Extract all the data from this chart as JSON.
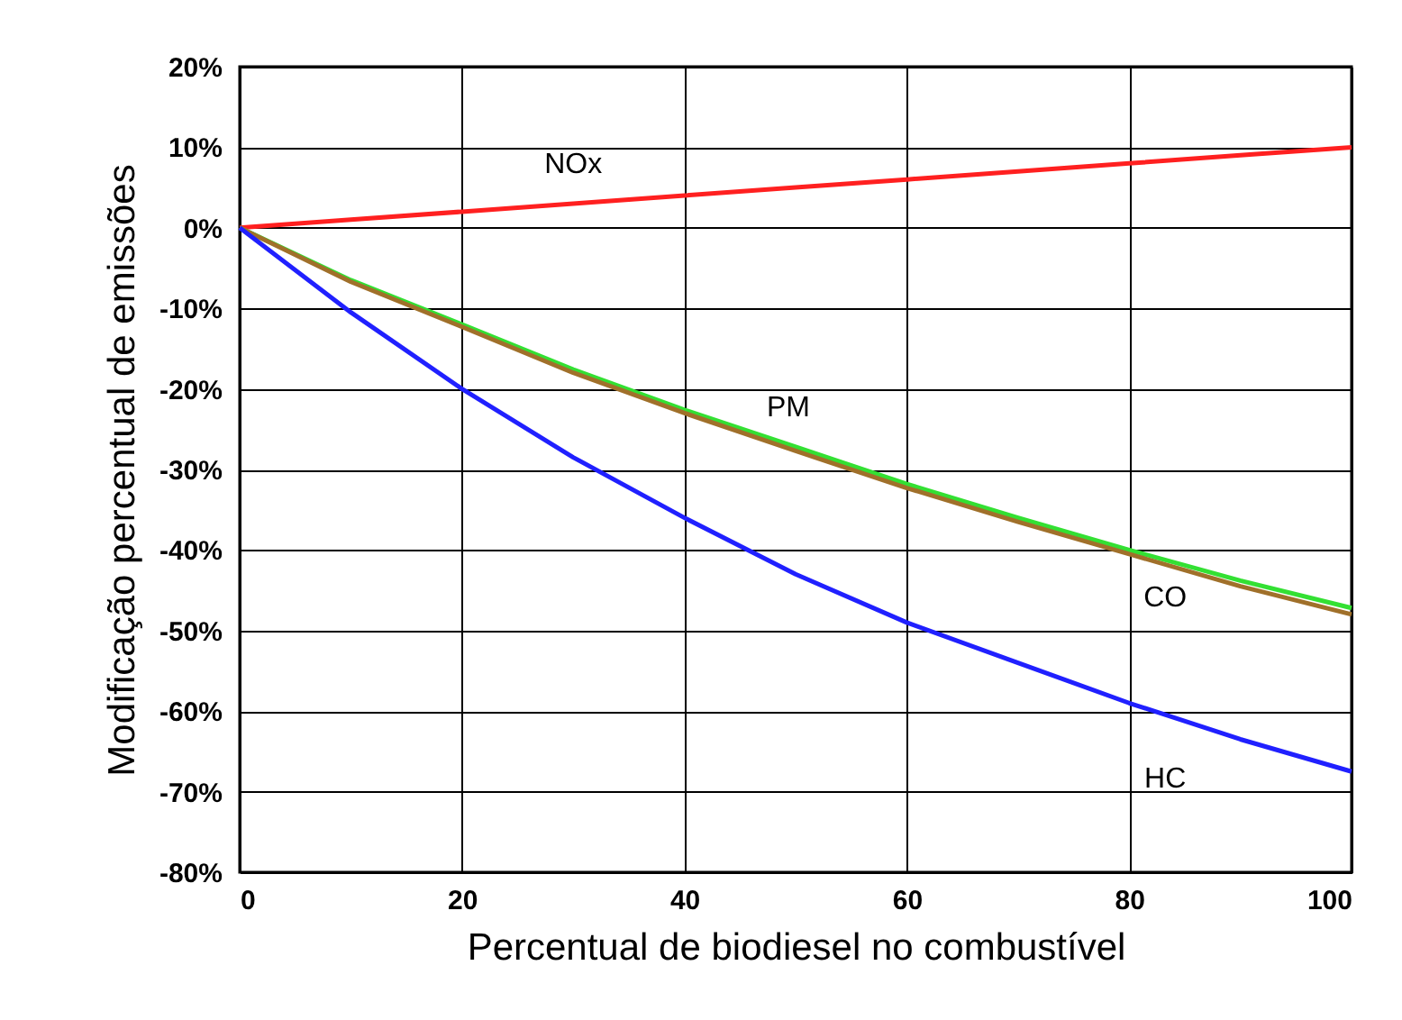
{
  "chart_data": {
    "type": "line",
    "xlabel": "Percentual de biodiesel no combustível",
    "ylabel": "Modificação percentual de emissões",
    "x": [
      0,
      10,
      20,
      30,
      40,
      50,
      60,
      70,
      80,
      90,
      100
    ],
    "series": [
      {
        "name": "NOx",
        "color": "#ff2020",
        "values": [
          0,
          1,
          2,
          3,
          4,
          5,
          6,
          7,
          8,
          9,
          10
        ]
      },
      {
        "name": "PM",
        "color": "#33e033",
        "values": [
          0,
          -6.5,
          -12,
          -17.6,
          -22.6,
          -27.2,
          -31.8,
          -36,
          -40,
          -43.8,
          -47.2
        ]
      },
      {
        "name": "CO",
        "color": "#a0702a",
        "values": [
          0,
          -6.7,
          -12.3,
          -18,
          -23,
          -27.7,
          -32.3,
          -36.5,
          -40.5,
          -44.5,
          -48
        ]
      },
      {
        "name": "HC",
        "color": "#2020ff",
        "values": [
          0,
          -10.5,
          -20,
          -28.5,
          -36,
          -43,
          -49,
          -54,
          -59,
          -63.5,
          -67.5
        ]
      }
    ],
    "xlim": [
      0,
      100
    ],
    "xticks": [
      0,
      20,
      40,
      60,
      80,
      100
    ],
    "ylim": [
      -80,
      20
    ],
    "yticks": [
      {
        "value": -80,
        "label": "-80%"
      },
      {
        "value": -70,
        "label": "-70%"
      },
      {
        "value": -60,
        "label": "-60%"
      },
      {
        "value": -50,
        "label": "-50%"
      },
      {
        "value": -40,
        "label": "-40%"
      },
      {
        "value": -30,
        "label": "-30%"
      },
      {
        "value": -20,
        "label": "-20%"
      },
      {
        "value": -10,
        "label": "-10%"
      },
      {
        "value": 0,
        "label": "0%"
      },
      {
        "value": 10,
        "label": "10%"
      },
      {
        "value": 20,
        "label": "20%"
      }
    ],
    "grid": true,
    "marker": "none",
    "line_style": "solid",
    "legend": false
  }
}
